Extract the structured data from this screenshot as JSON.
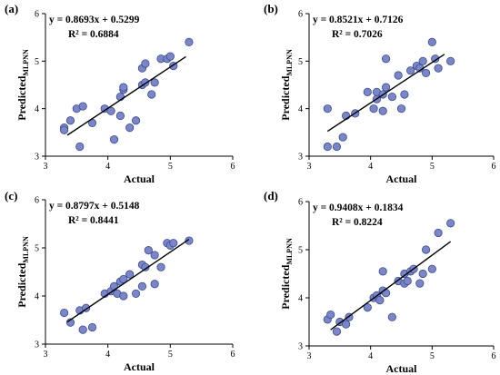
{
  "chart_data": [
    {
      "type": "scatter",
      "panel_label": "(a)",
      "equation": "y = 0.8693x + 0.5299",
      "r2": "R² = 0.6884",
      "xlabel": "Actual",
      "ylabel_main": "Predicted",
      "ylabel_sub": "MLPNN",
      "xlim": [
        3,
        6
      ],
      "ylim": [
        3,
        6
      ],
      "xticks": [
        "3",
        "4",
        "5",
        "6"
      ],
      "yticks": [
        "3",
        "4",
        "5",
        "6"
      ],
      "trend": {
        "slope": 0.8693,
        "intercept": 0.5299,
        "x_range": [
          3.35,
          5.25
        ]
      },
      "points": [
        [
          3.3,
          3.6
        ],
        [
          3.3,
          3.55
        ],
        [
          3.4,
          3.75
        ],
        [
          3.5,
          4.0
        ],
        [
          3.55,
          3.2
        ],
        [
          3.6,
          4.05
        ],
        [
          3.75,
          3.7
        ],
        [
          3.95,
          4.0
        ],
        [
          4.05,
          3.95
        ],
        [
          4.1,
          3.35
        ],
        [
          4.2,
          4.25
        ],
        [
          4.2,
          3.85
        ],
        [
          4.25,
          4.4
        ],
        [
          4.25,
          4.45
        ],
        [
          4.35,
          3.6
        ],
        [
          4.45,
          3.75
        ],
        [
          4.55,
          4.85
        ],
        [
          4.55,
          4.5
        ],
        [
          4.6,
          4.95
        ],
        [
          4.6,
          4.55
        ],
        [
          4.7,
          4.3
        ],
        [
          4.75,
          4.55
        ],
        [
          4.85,
          5.05
        ],
        [
          4.95,
          5.05
        ],
        [
          5.0,
          5.1
        ],
        [
          5.05,
          4.9
        ],
        [
          5.3,
          5.4
        ]
      ]
    },
    {
      "type": "scatter",
      "panel_label": "(b)",
      "equation": "y = 0.8521x + 0.7126",
      "r2": "R² = 0.7026",
      "xlabel": "Actual",
      "ylabel_main": "Predicted",
      "ylabel_sub": "MLPNN",
      "xlim": [
        3,
        6
      ],
      "ylim": [
        3,
        6
      ],
      "xticks": [
        "3",
        "4",
        "5",
        "6"
      ],
      "yticks": [
        "3",
        "4",
        "5",
        "6"
      ],
      "trend": {
        "slope": 0.8521,
        "intercept": 0.7126,
        "x_range": [
          3.3,
          5.2
        ]
      },
      "points": [
        [
          3.3,
          4.0
        ],
        [
          3.3,
          3.2
        ],
        [
          3.45,
          3.2
        ],
        [
          3.55,
          3.4
        ],
        [
          3.6,
          3.85
        ],
        [
          3.75,
          3.9
        ],
        [
          3.95,
          4.35
        ],
        [
          4.05,
          4.0
        ],
        [
          4.1,
          4.2
        ],
        [
          4.1,
          4.35
        ],
        [
          4.2,
          3.95
        ],
        [
          4.2,
          4.3
        ],
        [
          4.25,
          4.45
        ],
        [
          4.25,
          5.05
        ],
        [
          4.35,
          4.25
        ],
        [
          4.45,
          4.7
        ],
        [
          4.5,
          4.0
        ],
        [
          4.55,
          4.3
        ],
        [
          4.65,
          4.8
        ],
        [
          4.75,
          4.9
        ],
        [
          4.8,
          4.85
        ],
        [
          4.85,
          5.0
        ],
        [
          4.9,
          4.75
        ],
        [
          5.0,
          5.4
        ],
        [
          5.05,
          5.05
        ],
        [
          5.1,
          4.85
        ],
        [
          5.3,
          5.0
        ]
      ]
    },
    {
      "type": "scatter",
      "panel_label": "(c)",
      "equation": "y = 0.8797x + 0.5148",
      "r2": "R² = 0.8441",
      "xlabel": "Actual",
      "ylabel_main": "Predicted",
      "ylabel_sub": "MLPNN",
      "xlim": [
        3,
        6
      ],
      "ylim": [
        3,
        6
      ],
      "xticks": [
        "3",
        "4",
        "5",
        "6"
      ],
      "yticks": [
        "3",
        "4",
        "5",
        "6"
      ],
      "trend": {
        "slope": 0.8797,
        "intercept": 0.5148,
        "x_range": [
          3.35,
          5.3
        ]
      },
      "points": [
        [
          3.3,
          3.65
        ],
        [
          3.4,
          3.45
        ],
        [
          3.55,
          3.7
        ],
        [
          3.6,
          3.3
        ],
        [
          3.65,
          3.75
        ],
        [
          3.75,
          3.35
        ],
        [
          3.95,
          4.05
        ],
        [
          4.05,
          4.1
        ],
        [
          4.1,
          4.2
        ],
        [
          4.15,
          4.05
        ],
        [
          4.2,
          4.3
        ],
        [
          4.25,
          4.0
        ],
        [
          4.25,
          4.35
        ],
        [
          4.35,
          4.45
        ],
        [
          4.45,
          4.05
        ],
        [
          4.55,
          4.2
        ],
        [
          4.55,
          4.65
        ],
        [
          4.6,
          4.6
        ],
        [
          4.65,
          4.95
        ],
        [
          4.75,
          4.25
        ],
        [
          4.75,
          4.85
        ],
        [
          4.85,
          4.6
        ],
        [
          4.95,
          5.1
        ],
        [
          5.0,
          5.05
        ],
        [
          5.05,
          5.1
        ],
        [
          5.3,
          5.15
        ]
      ]
    },
    {
      "type": "scatter",
      "panel_label": "(d)",
      "equation": "y = 0.9408x + 0.1834",
      "r2": "R² = 0.8224",
      "xlabel": "Actual",
      "ylabel_main": "Predicted",
      "ylabel_sub": "MLPNN",
      "xlim": [
        3,
        6
      ],
      "ylim": [
        3,
        6
      ],
      "xticks": [
        "3",
        "4",
        "5",
        "6"
      ],
      "yticks": [
        "3",
        "4",
        "5",
        "6"
      ],
      "trend": {
        "slope": 0.9408,
        "intercept": 0.1834,
        "x_range": [
          3.35,
          5.3
        ]
      },
      "points": [
        [
          3.3,
          3.55
        ],
        [
          3.35,
          3.65
        ],
        [
          3.45,
          3.3
        ],
        [
          3.5,
          3.5
        ],
        [
          3.6,
          3.45
        ],
        [
          3.65,
          3.6
        ],
        [
          3.95,
          3.8
        ],
        [
          4.05,
          4.0
        ],
        [
          4.1,
          4.05
        ],
        [
          4.15,
          3.95
        ],
        [
          4.2,
          4.15
        ],
        [
          4.2,
          4.55
        ],
        [
          4.25,
          4.1
        ],
        [
          4.35,
          3.6
        ],
        [
          4.45,
          4.35
        ],
        [
          4.55,
          4.3
        ],
        [
          4.55,
          4.5
        ],
        [
          4.6,
          4.35
        ],
        [
          4.65,
          4.55
        ],
        [
          4.7,
          4.6
        ],
        [
          4.8,
          4.3
        ],
        [
          4.85,
          4.5
        ],
        [
          4.9,
          5.0
        ],
        [
          5.0,
          4.6
        ],
        [
          5.1,
          5.35
        ],
        [
          5.3,
          5.55
        ]
      ]
    }
  ]
}
